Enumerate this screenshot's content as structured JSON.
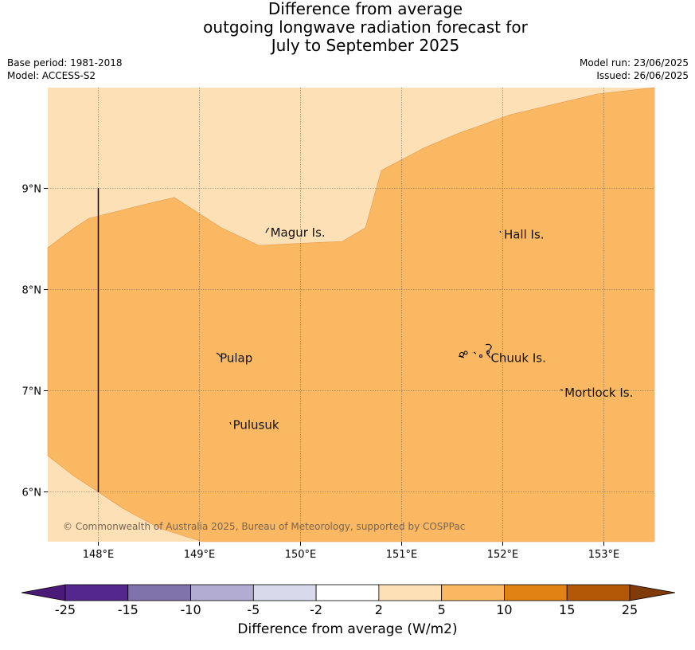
{
  "title": {
    "line1": "Difference from average",
    "line2": "outgoing longwave radiation forecast for",
    "line3": "July to September 2025"
  },
  "meta": {
    "base_period": "Base period: 1981-2018",
    "model": "Model: ACCESS-S2",
    "model_run": "Model run: 23/06/2025",
    "issued": "Issued: 26/06/2025"
  },
  "map": {
    "extent": {
      "lon_min": 147.5,
      "lon_max": 153.5,
      "lat_min": 5.5,
      "lat_max": 9.98
    },
    "lat_ticks": [
      {
        "value": 9,
        "label": "9°N"
      },
      {
        "value": 8,
        "label": "8°N"
      },
      {
        "value": 7,
        "label": "7°N"
      },
      {
        "value": 6,
        "label": "6°N"
      }
    ],
    "lon_ticks": [
      {
        "value": 148,
        "label": "148°E"
      },
      {
        "value": 149,
        "label": "149°E"
      },
      {
        "value": 150,
        "label": "150°E"
      },
      {
        "value": 151,
        "label": "151°E"
      },
      {
        "value": 152,
        "label": "152°E"
      },
      {
        "value": 153,
        "label": "153°E"
      }
    ],
    "places": [
      {
        "name": "Magur Is.",
        "lon": 149.67,
        "lat": 8.57
      },
      {
        "name": "Hall Is.",
        "lon": 151.98,
        "lat": 8.55
      },
      {
        "name": "Pulap",
        "lon": 149.17,
        "lat": 7.33
      },
      {
        "name": "Chuuk Is.",
        "lon": 151.85,
        "lat": 7.33
      },
      {
        "name": "Mortlock Is.",
        "lon": 152.58,
        "lat": 6.99
      },
      {
        "name": "Pulusuk",
        "lon": 149.3,
        "lat": 6.67
      }
    ],
    "copyright": "© Commonwealth of Australia 2025, Bureau of Meteorology, supported by COSPPac",
    "fill_colors": {
      "band_2_5": "#fde0b6",
      "band_5_10": "#fab862"
    }
  },
  "colorbar": {
    "ticks": [
      "-25",
      "-15",
      "-10",
      "-5",
      "-2",
      "2",
      "5",
      "10",
      "15",
      "25"
    ],
    "colors": [
      "#4b1a78",
      "#54278f",
      "#8073ac",
      "#b2abd2",
      "#d8daeb",
      "#ffffff",
      "#fde0b6",
      "#fab862",
      "#e08214",
      "#b35806",
      "#7f3b08"
    ],
    "label": "Difference from average (W/m2)"
  }
}
